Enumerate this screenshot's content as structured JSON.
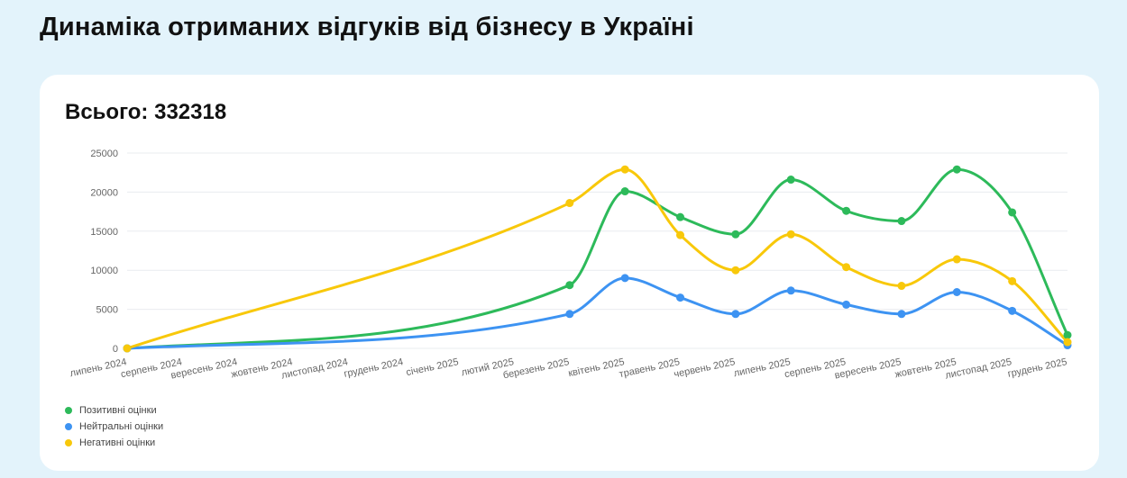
{
  "page": {
    "title": "Динаміка отриманих відгуків від бізнесу в Україні"
  },
  "card": {
    "total_label": "Всього: 332318"
  },
  "chart_data": {
    "type": "line",
    "smooth": true,
    "categories": [
      "липень 2024",
      "серпень 2024",
      "вересень 2024",
      "жовтень 2024",
      "листопад 2024",
      "грудень 2024",
      "січень 2025",
      "лютий 2025",
      "березень 2025",
      "квітень 2025",
      "травень 2025",
      "червень 2025",
      "липень 2025",
      "серпень 2025",
      "вересень 2025",
      "жовтень 2025",
      "листопад 2025",
      "грудень 2025"
    ],
    "yticks": [
      0,
      5000,
      10000,
      15000,
      20000,
      25000
    ],
    "ylim": [
      0,
      25000
    ],
    "grid": true,
    "legend_position": "bottom-left",
    "series": [
      {
        "name": "Позитивні оцінки",
        "color": "#2dba5a",
        "values": [
          0,
          null,
          null,
          null,
          null,
          null,
          null,
          null,
          8100,
          20100,
          16800,
          14600,
          21600,
          17600,
          16300,
          22900,
          17400,
          1700
        ]
      },
      {
        "name": "Нейтральні оцінки",
        "color": "#3d93f2",
        "values": [
          0,
          null,
          null,
          null,
          null,
          null,
          null,
          null,
          4400,
          9000,
          6500,
          4400,
          7400,
          5600,
          4400,
          7200,
          4800,
          400
        ]
      },
      {
        "name": "Негативні оцінки",
        "color": "#f8c80a",
        "values": [
          0,
          null,
          null,
          null,
          null,
          null,
          null,
          null,
          18600,
          22900,
          14500,
          10000,
          14600,
          10400,
          8000,
          11400,
          8600,
          800
        ]
      }
    ]
  }
}
